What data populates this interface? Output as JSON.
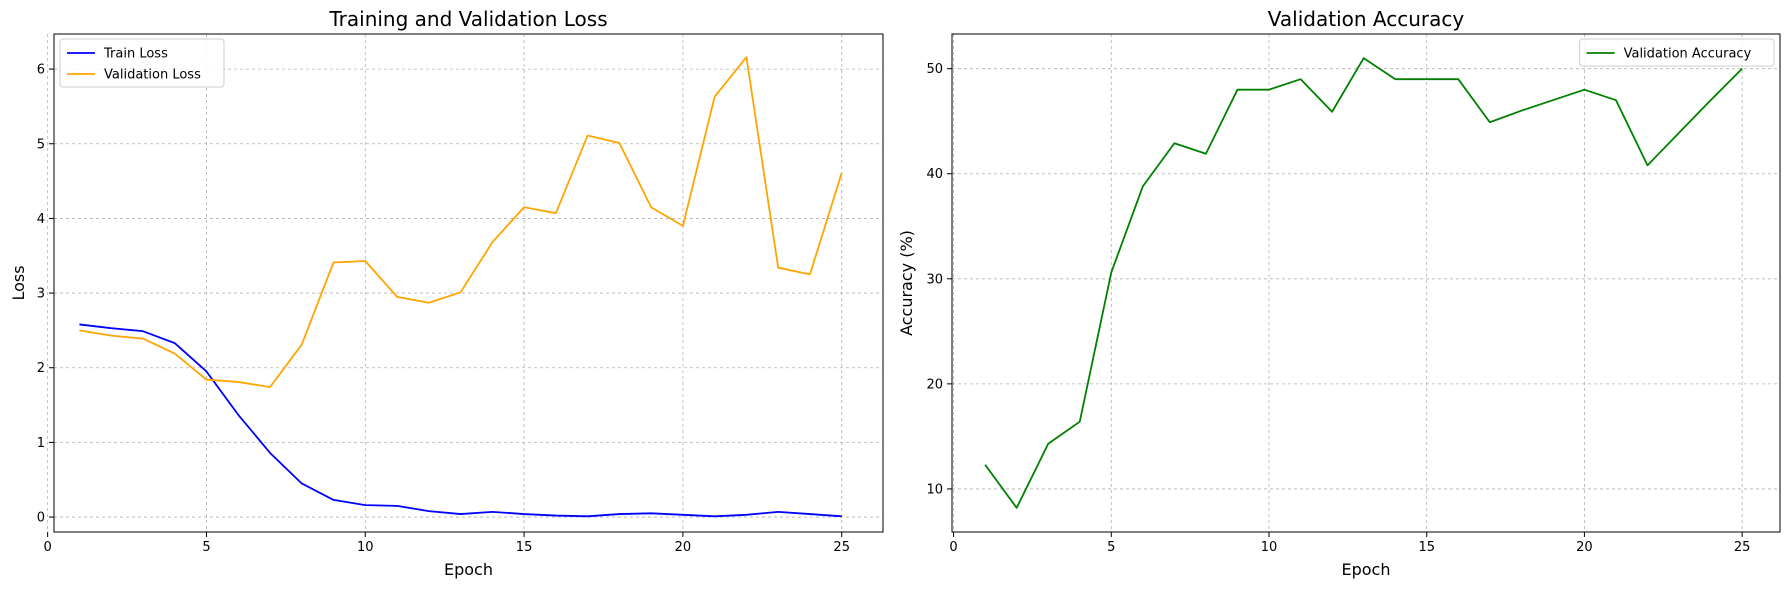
{
  "chart_data": [
    {
      "type": "line",
      "title": "Training and Validation Loss",
      "xlabel": "Epoch",
      "ylabel": "Loss",
      "x": [
        1,
        2,
        3,
        4,
        5,
        6,
        7,
        8,
        9,
        10,
        11,
        12,
        13,
        14,
        15,
        16,
        17,
        18,
        19,
        20,
        21,
        22,
        23,
        24,
        25
      ],
      "xlim": [
        0.2,
        26.3
      ],
      "ylim": [
        -0.2,
        6.47
      ],
      "xticks": [
        0,
        5,
        10,
        15,
        20,
        25
      ],
      "yticks": [
        0,
        1,
        2,
        3,
        4,
        5,
        6
      ],
      "grid": true,
      "legend_position": "top-left",
      "series": [
        {
          "name": "Train Loss",
          "color": "#0000ff",
          "values": [
            2.58,
            2.53,
            2.49,
            2.33,
            1.95,
            1.37,
            0.86,
            0.45,
            0.23,
            0.16,
            0.15,
            0.08,
            0.04,
            0.07,
            0.04,
            0.02,
            0.01,
            0.04,
            0.05,
            0.03,
            0.01,
            0.03,
            0.07,
            0.04,
            0.01
          ]
        },
        {
          "name": "Validation Loss",
          "color": "#ffa500",
          "values": [
            2.5,
            2.43,
            2.39,
            2.19,
            1.84,
            1.81,
            1.74,
            2.31,
            3.41,
            3.43,
            2.95,
            2.87,
            3.01,
            3.68,
            4.15,
            4.07,
            5.11,
            5.01,
            4.15,
            3.9,
            5.63,
            6.16,
            3.34,
            3.25,
            4.61
          ]
        }
      ]
    },
    {
      "type": "line",
      "title": "Validation Accuracy",
      "xlabel": "Epoch",
      "ylabel": "Accuracy (%)",
      "x": [
        1,
        2,
        3,
        4,
        5,
        6,
        7,
        8,
        9,
        10,
        11,
        12,
        13,
        14,
        15,
        16,
        17,
        18,
        19,
        20,
        21,
        22,
        23,
        24,
        25
      ],
      "xlim": [
        -0.05,
        26.2
      ],
      "ylim": [
        5.9,
        53.3
      ],
      "xticks": [
        0,
        5,
        10,
        15,
        20,
        25
      ],
      "yticks": [
        10,
        20,
        30,
        40,
        50
      ],
      "grid": true,
      "legend_position": "top-right",
      "series": [
        {
          "name": "Validation Accuracy",
          "color": "#008000",
          "values": [
            12.3,
            8.2,
            14.3,
            16.4,
            30.6,
            38.8,
            42.9,
            41.9,
            48.0,
            48.0,
            49.0,
            45.9,
            51.0,
            49.0,
            49.0,
            49.0,
            44.9,
            46.0,
            47.0,
            48.0,
            47.0,
            40.8,
            43.9,
            47.0,
            50.0
          ]
        }
      ]
    }
  ]
}
